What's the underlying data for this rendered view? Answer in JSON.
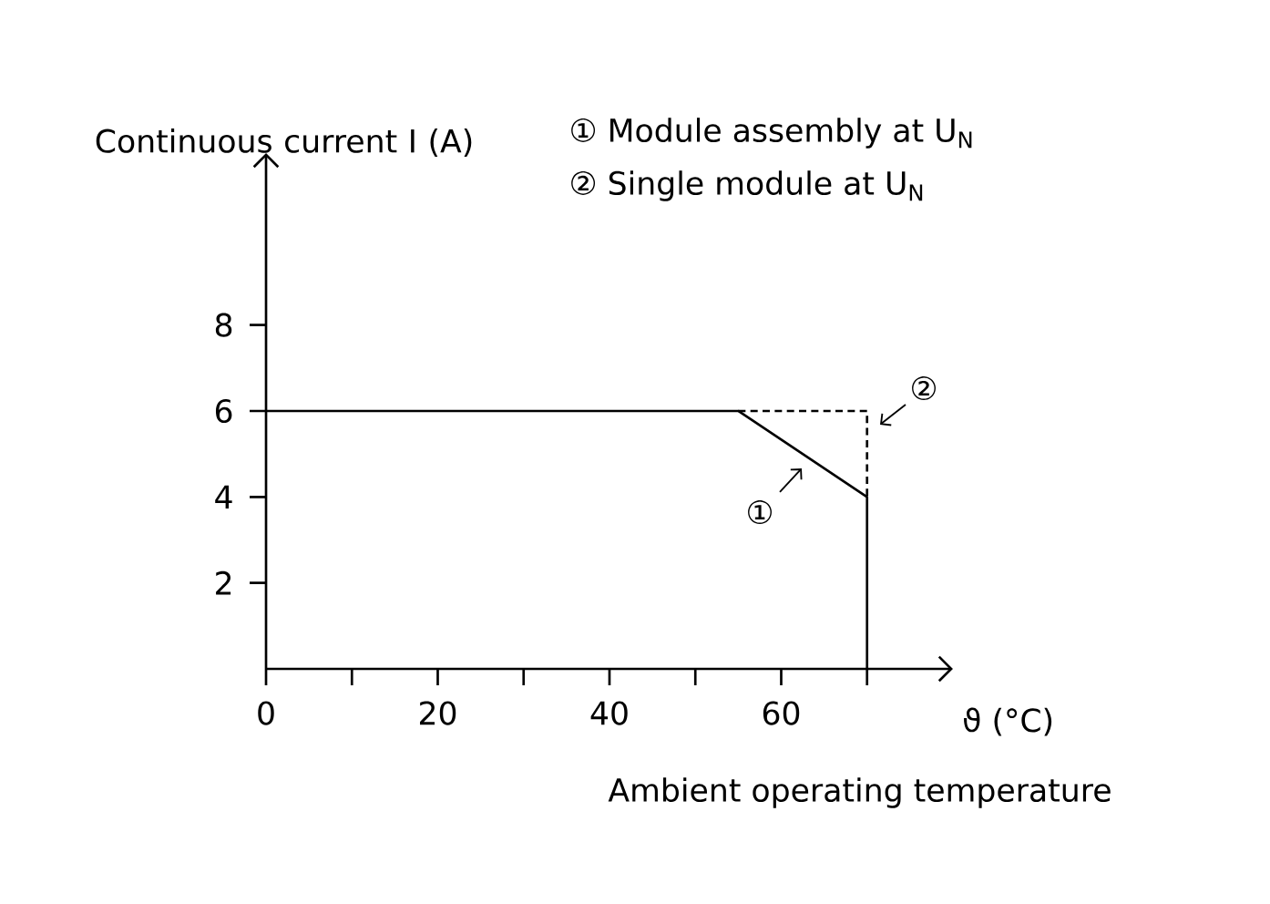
{
  "chart_data": {
    "type": "line",
    "ylabel": "Continuous current I (A)",
    "xlabel": "ϑ (°C)",
    "annotations": [
      "Ambient operating temperature",
      "① Module assembly at U$_{N}$",
      "② Single module at U$_{N}$",
      "①",
      "②"
    ],
    "series": [
      {
        "color": "#000000",
        "line_style": "solid",
        "x": [
          0,
          55,
          70,
          70
        ],
        "values": [
          6,
          6,
          4,
          0
        ]
      },
      {
        "color": "#000000",
        "line_style": "dashed",
        "x": [
          55,
          70,
          70
        ],
        "values": [
          6,
          6,
          4
        ]
      }
    ],
    "xlim": [
      0,
      80
    ],
    "ylim": [
      0,
      12
    ],
    "xticks": [
      0,
      {
        "value": 10,
        "label": null
      },
      20,
      {
        "value": 30,
        "label": null
      },
      40,
      {
        "value": 50,
        "label": null
      },
      60,
      {
        "value": 70,
        "label": null
      }
    ],
    "yticks": [
      2,
      4,
      6,
      8
    ],
    "grid": false,
    "marker": "none"
  }
}
